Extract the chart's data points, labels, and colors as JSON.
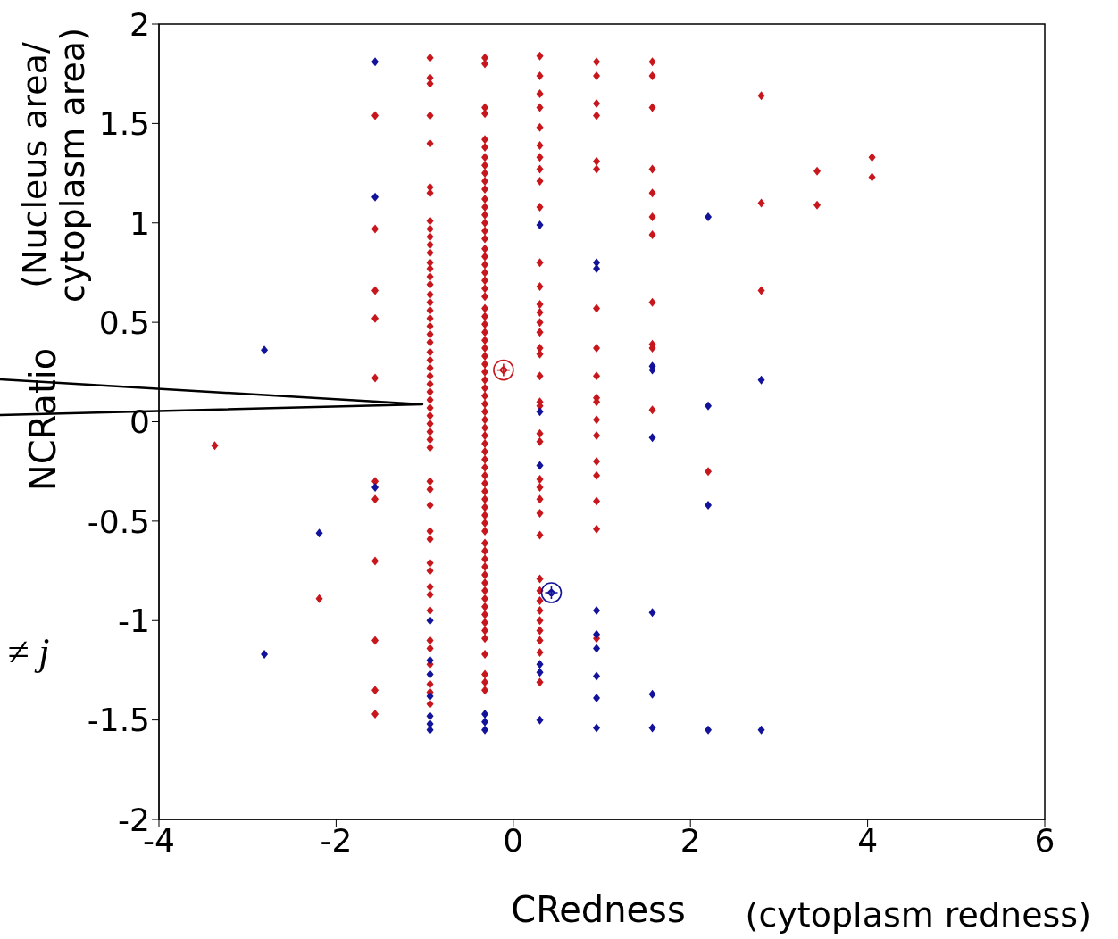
{
  "chart_data": {
    "type": "scatter",
    "xlabel": "CRedness",
    "ylabel": "NCRatio",
    "annotations": [
      "(Nucleus area/ cytoplasm area)",
      "(cytoplasm redness)",
      "≠ j"
    ],
    "xlim": [
      -4,
      6
    ],
    "xticks": [
      -4,
      -2,
      0,
      2,
      4,
      6
    ],
    "ylim": [
      -2,
      2
    ],
    "yticks": [
      -2,
      -1.5,
      -1,
      -0.5,
      0,
      0.5,
      1,
      1.5,
      2
    ],
    "grid": false,
    "legend": false,
    "marker": "diamond",
    "series": [
      {
        "color": "#c8161d",
        "x": [
          -3.37,
          -2.19,
          -1.56,
          -1.56,
          -1.56,
          -1.56,
          -1.56,
          -1.56,
          -1.56,
          -1.56,
          -1.56,
          -1.56,
          -1.56,
          -0.94,
          -0.94,
          -0.94,
          -0.94,
          -0.94,
          -0.94,
          -0.94,
          -0.94,
          -0.94,
          -0.94,
          -0.94,
          -0.94,
          -0.94,
          -0.94,
          -0.94,
          -0.94,
          -0.94,
          -0.94,
          -0.94,
          -0.94,
          -0.94,
          -0.94,
          -0.94,
          -0.94,
          -0.94,
          -0.94,
          -0.94,
          -0.94,
          -0.94,
          -0.94,
          -0.94,
          -0.94,
          -0.94,
          -0.94,
          -0.94,
          -0.94,
          -0.94,
          -0.94,
          -0.94,
          -0.94,
          -0.94,
          -0.94,
          -0.94,
          -0.94,
          -0.94,
          -0.94,
          -0.94,
          -0.94,
          -0.94,
          -0.94,
          -0.94,
          -0.94,
          -0.32,
          -0.32,
          -0.32,
          -0.32,
          -0.32,
          -0.32,
          -0.32,
          -0.32,
          -0.32,
          -0.32,
          -0.32,
          -0.32,
          -0.32,
          -0.32,
          -0.32,
          -0.32,
          -0.32,
          -0.32,
          -0.32,
          -0.32,
          -0.32,
          -0.32,
          -0.32,
          -0.32,
          -0.32,
          -0.32,
          -0.32,
          -0.32,
          -0.32,
          -0.32,
          -0.32,
          -0.32,
          -0.32,
          -0.32,
          -0.32,
          -0.32,
          -0.32,
          -0.32,
          -0.32,
          -0.32,
          -0.32,
          -0.32,
          -0.32,
          -0.32,
          -0.32,
          -0.32,
          -0.32,
          -0.32,
          -0.32,
          -0.32,
          -0.32,
          -0.32,
          -0.32,
          -0.32,
          -0.32,
          -0.32,
          -0.32,
          -0.32,
          -0.32,
          -0.32,
          -0.32,
          -0.32,
          -0.32,
          -0.32,
          -0.32,
          -0.32,
          -0.32,
          -0.32,
          -0.32,
          -0.32,
          0.3,
          0.3,
          0.3,
          0.3,
          0.3,
          0.3,
          0.3,
          0.3,
          0.3,
          0.3,
          0.3,
          0.3,
          0.3,
          0.3,
          0.3,
          0.3,
          0.3,
          0.3,
          0.3,
          0.3,
          0.3,
          0.3,
          0.3,
          0.3,
          0.3,
          0.3,
          0.3,
          0.3,
          0.3,
          0.3,
          0.3,
          0.3,
          0.3,
          0.3,
          0.3,
          0.3,
          0.3,
          0.94,
          0.94,
          0.94,
          0.94,
          0.94,
          0.94,
          0.94,
          0.94,
          0.94,
          0.94,
          0.94,
          0.94,
          0.94,
          0.94,
          0.94,
          0.94,
          0.94,
          0.94,
          1.57,
          1.57,
          1.57,
          1.57,
          1.57,
          1.57,
          1.57,
          1.57,
          1.57,
          1.57,
          1.57,
          2.2,
          2.8,
          2.8,
          2.8,
          3.43,
          3.43,
          4.05,
          4.05
        ],
        "values": [
          -0.12,
          -0.89,
          1.54,
          0.97,
          0.66,
          0.52,
          0.22,
          -0.3,
          -0.39,
          -0.7,
          -1.1,
          -1.35,
          -1.47,
          1.83,
          1.73,
          1.7,
          1.54,
          1.4,
          1.18,
          1.15,
          1.01,
          0.97,
          0.93,
          0.89,
          0.85,
          0.8,
          0.77,
          0.73,
          0.69,
          0.64,
          0.6,
          0.56,
          0.52,
          0.48,
          0.44,
          0.4,
          0.35,
          0.31,
          0.27,
          0.23,
          0.19,
          0.15,
          0.11,
          0.07,
          0.03,
          -0.01,
          -0.05,
          -0.09,
          -0.13,
          -0.3,
          -0.34,
          -0.42,
          -0.55,
          -0.59,
          -0.71,
          -0.75,
          -0.83,
          -0.87,
          -0.95,
          -1.1,
          -1.14,
          -1.22,
          -1.32,
          -1.36,
          -1.42,
          1.83,
          1.8,
          1.58,
          1.55,
          1.42,
          1.38,
          1.33,
          1.29,
          1.25,
          1.21,
          1.17,
          1.12,
          1.08,
          1.04,
          1,
          0.96,
          0.92,
          0.87,
          0.83,
          0.79,
          0.75,
          0.71,
          0.67,
          0.63,
          0.57,
          0.53,
          0.49,
          0.45,
          0.41,
          0.37,
          0.33,
          0.29,
          0.25,
          0.21,
          0.17,
          0.13,
          0.09,
          0.05,
          0.01,
          -0.03,
          -0.07,
          -0.11,
          -0.15,
          -0.19,
          -0.23,
          -0.27,
          -0.31,
          -0.35,
          -0.39,
          -0.43,
          -0.47,
          -0.51,
          -0.55,
          -0.61,
          -0.65,
          -0.69,
          -0.73,
          -0.77,
          -0.81,
          -0.85,
          -0.89,
          -0.93,
          -0.97,
          -1.01,
          -1.05,
          -1.09,
          -1.17,
          -1.27,
          -1.31,
          -1.35,
          1.84,
          1.74,
          1.65,
          1.58,
          1.48,
          1.39,
          1.33,
          1.27,
          1.21,
          1.08,
          0.8,
          0.68,
          0.59,
          0.55,
          0.5,
          0.45,
          0.37,
          0.34,
          0.23,
          0.1,
          0.08,
          -0.06,
          -0.1,
          -0.29,
          -0.33,
          -0.39,
          -0.46,
          -0.57,
          -0.79,
          -0.85,
          -0.9,
          -0.95,
          -1,
          -1.05,
          -1.1,
          -1.16,
          -1.31,
          1.81,
          1.74,
          1.6,
          1.54,
          1.31,
          1.27,
          0.57,
          0.37,
          0.23,
          0.12,
          0.1,
          0.01,
          -0.07,
          -0.2,
          -0.27,
          -0.4,
          -0.54,
          -1.09,
          1.81,
          1.74,
          1.58,
          1.27,
          1.15,
          1.03,
          0.94,
          0.6,
          0.39,
          0.37,
          0.06,
          -0.25,
          1.64,
          1.1,
          0.66,
          1.26,
          1.09,
          1.33,
          1.23
        ]
      },
      {
        "color": "#12129a",
        "x": [
          -2.81,
          -2.81,
          -2.19,
          -1.56,
          -1.56,
          -1.56,
          -0.94,
          -0.94,
          -0.94,
          -0.94,
          -0.94,
          -0.94,
          -0.94,
          -0.32,
          -0.32,
          -0.32,
          0.3,
          0.3,
          0.3,
          0.3,
          0.3,
          0.3,
          0.94,
          0.94,
          0.94,
          0.94,
          0.94,
          0.94,
          0.94,
          0.94,
          1.57,
          1.57,
          1.57,
          1.57,
          1.57,
          1.57,
          2.2,
          2.2,
          2.2,
          2.2,
          2.8,
          2.8
        ],
        "values": [
          0.36,
          -1.17,
          -0.56,
          1.81,
          1.13,
          -0.33,
          -1,
          -1.2,
          -1.27,
          -1.38,
          -1.48,
          -1.52,
          -1.55,
          -1.47,
          -1.51,
          -1.55,
          0.99,
          0.05,
          -0.22,
          -1.22,
          -1.26,
          -1.5,
          0.8,
          0.77,
          -0.95,
          -1.07,
          -1.14,
          -1.28,
          -1.39,
          -1.54,
          0.28,
          0.26,
          -0.08,
          -0.96,
          -1.37,
          -1.54,
          1.03,
          0.08,
          -0.42,
          -1.55,
          0.21,
          -1.55
        ]
      },
      {
        "color": "#c8161d",
        "marker": "circle",
        "x": [
          -0.11
        ],
        "values": [
          0.26
        ]
      },
      {
        "color": "#12129a",
        "marker": "circle",
        "x": [
          0.43
        ],
        "values": [
          -0.86
        ]
      }
    ]
  }
}
